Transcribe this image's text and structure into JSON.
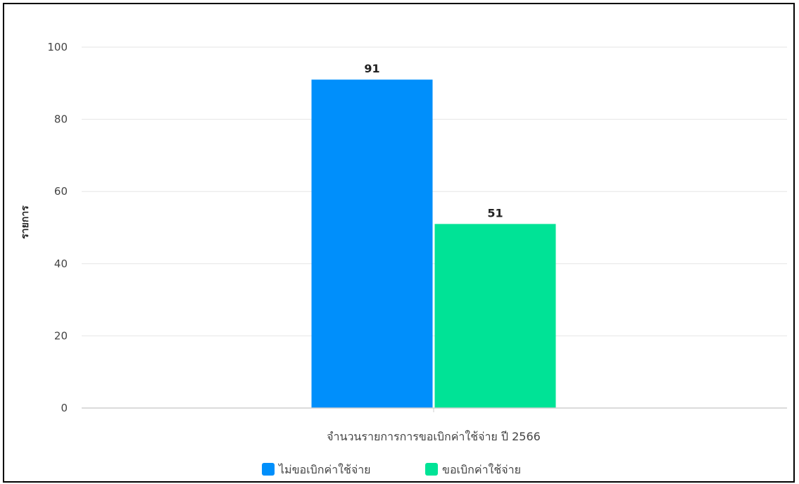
{
  "chart_data": {
    "type": "bar",
    "title": "",
    "xlabel": "",
    "ylabel": "รายการ",
    "categories": [
      "จำนวนรายการการขอเบิกค่าใช้จ่าย ปี 2566"
    ],
    "series": [
      {
        "name": "ไม่ขอเบิกค่าใช้จ่าย",
        "values": [
          91
        ],
        "color": "#008ffb"
      },
      {
        "name": "ขอเบิกค่าใช้จ่าย",
        "values": [
          51
        ],
        "color": "#00e396"
      }
    ],
    "ylim": [
      0,
      100
    ],
    "yticks": [
      0,
      20,
      40,
      60,
      80,
      100
    ],
    "grid": true,
    "legend_position": "bottom-center",
    "data_labels": true
  }
}
